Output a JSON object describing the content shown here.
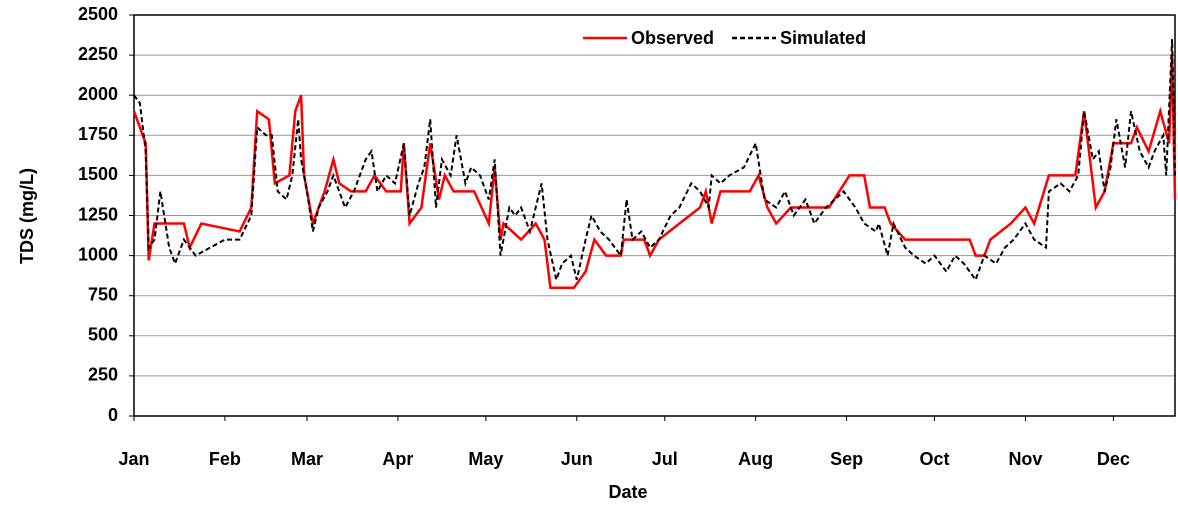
{
  "chart_data": {
    "type": "line",
    "x_label": "Date",
    "y_label": "TDS (mg/L)",
    "xlim": [
      0,
      355
    ],
    "xticks": [
      {
        "value": 0,
        "label": "Jan"
      },
      {
        "value": 31,
        "label": "Feb"
      },
      {
        "value": 59,
        "label": "Mar"
      },
      {
        "value": 90,
        "label": "Apr"
      },
      {
        "value": 120,
        "label": "May"
      },
      {
        "value": 151,
        "label": "Jun"
      },
      {
        "value": 181,
        "label": "Jul"
      },
      {
        "value": 212,
        "label": "Aug"
      },
      {
        "value": 243,
        "label": "Sep"
      },
      {
        "value": 273,
        "label": "Oct"
      },
      {
        "value": 304,
        "label": "Nov"
      },
      {
        "value": 334,
        "label": "Dec"
      }
    ],
    "ylim": [
      0,
      2500
    ],
    "yticks": [
      0,
      250,
      500,
      750,
      1000,
      1250,
      1500,
      1750,
      2000,
      2250,
      2500
    ],
    "grid": true,
    "legend": "top",
    "series": [
      {
        "name": "Observed",
        "color": "#ff0000",
        "line_style": "solid",
        "x": [
          0,
          4,
          5,
          7,
          17,
          19,
          23,
          36,
          40,
          42,
          46,
          48,
          53,
          55,
          57,
          58,
          61,
          65,
          68,
          70,
          74,
          79,
          82,
          86,
          91,
          92,
          94,
          98,
          101,
          104,
          106,
          109,
          116,
          121,
          123,
          125,
          126,
          132,
          137,
          140,
          142,
          150,
          154,
          157,
          161,
          166,
          167,
          174,
          176,
          179,
          186,
          193,
          195,
          197,
          200,
          210,
          213,
          216,
          219,
          224,
          237,
          244,
          249,
          251,
          256,
          258,
          263,
          285,
          287,
          290,
          292,
          299,
          304,
          307,
          312,
          321,
          324,
          328,
          331,
          334,
          340,
          342,
          346,
          350,
          353,
          354,
          355
        ],
        "values": [
          1900,
          1700,
          970,
          1200,
          1200,
          1050,
          1200,
          1150,
          1300,
          1900,
          1850,
          1450,
          1500,
          1900,
          2000,
          1500,
          1200,
          1400,
          1600,
          1450,
          1400,
          1400,
          1500,
          1400,
          1400,
          1700,
          1200,
          1300,
          1700,
          1350,
          1500,
          1400,
          1400,
          1200,
          1550,
          1100,
          1200,
          1100,
          1200,
          1100,
          800,
          800,
          900,
          1100,
          1000,
          1000,
          1100,
          1100,
          1000,
          1100,
          1200,
          1300,
          1400,
          1200,
          1400,
          1400,
          1500,
          1300,
          1200,
          1300,
          1300,
          1500,
          1500,
          1300,
          1300,
          1200,
          1100,
          1100,
          1000,
          1000,
          1100,
          1200,
          1300,
          1200,
          1500,
          1500,
          1900,
          1300,
          1400,
          1700,
          1700,
          1800,
          1650,
          1900,
          1700,
          2250,
          1350
        ]
      },
      {
        "name": "Simulated",
        "color": "#000000",
        "line_style": "dashed",
        "x": [
          0,
          2,
          4,
          5,
          7,
          9,
          12,
          14,
          17,
          21,
          26,
          31,
          36,
          40,
          42,
          45,
          47,
          49,
          52,
          54,
          56,
          57,
          59,
          61,
          63,
          66,
          68,
          72,
          75,
          79,
          81,
          83,
          86,
          89,
          92,
          94,
          97,
          99,
          101,
          103,
          105,
          108,
          110,
          113,
          115,
          118,
          121,
          123,
          125,
          128,
          130,
          132,
          135,
          137,
          139,
          141,
          144,
          146,
          149,
          151,
          154,
          156,
          159,
          162,
          166,
          168,
          170,
          173,
          176,
          179,
          183,
          186,
          190,
          193,
          196,
          197,
          200,
          203,
          208,
          212,
          215,
          219,
          222,
          225,
          229,
          232,
          236,
          239,
          242,
          246,
          249,
          253,
          254,
          257,
          259,
          263,
          266,
          270,
          273,
          277,
          280,
          283,
          287,
          290,
          294,
          297,
          300,
          304,
          307,
          311,
          312,
          316,
          319,
          322,
          324,
          327,
          329,
          331,
          333,
          335,
          338,
          340,
          343,
          346,
          348,
          351,
          352,
          354,
          355
        ],
        "values": [
          2000,
          1950,
          1650,
          1050,
          1100,
          1400,
          1050,
          950,
          1100,
          1000,
          1050,
          1100,
          1100,
          1250,
          1800,
          1750,
          1750,
          1400,
          1350,
          1500,
          1850,
          1600,
          1400,
          1150,
          1300,
          1400,
          1500,
          1300,
          1400,
          1600,
          1650,
          1400,
          1500,
          1450,
          1700,
          1250,
          1450,
          1550,
          1850,
          1300,
          1600,
          1500,
          1750,
          1450,
          1550,
          1500,
          1350,
          1600,
          1000,
          1300,
          1250,
          1300,
          1150,
          1300,
          1450,
          1100,
          850,
          950,
          1000,
          850,
          1100,
          1250,
          1150,
          1100,
          1000,
          1350,
          1100,
          1150,
          1050,
          1100,
          1250,
          1300,
          1450,
          1400,
          1300,
          1500,
          1450,
          1500,
          1550,
          1700,
          1350,
          1300,
          1400,
          1250,
          1350,
          1200,
          1300,
          1350,
          1400,
          1300,
          1200,
          1150,
          1200,
          1000,
          1200,
          1050,
          1000,
          950,
          1000,
          900,
          1000,
          950,
          850,
          1000,
          950,
          1050,
          1100,
          1200,
          1100,
          1050,
          1400,
          1450,
          1400,
          1500,
          1900,
          1600,
          1650,
          1400,
          1550,
          1850,
          1550,
          1900,
          1650,
          1550,
          1650,
          1750,
          1500,
          2350,
          1500
        ]
      }
    ]
  }
}
